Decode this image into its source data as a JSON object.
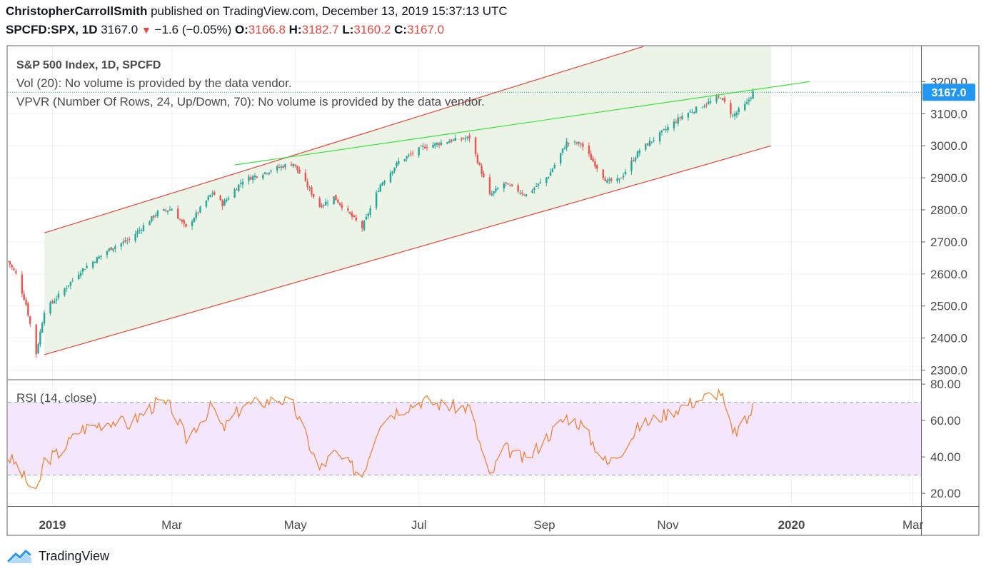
{
  "header": {
    "author": "ChristopherCarrollSmith",
    "published_text": "published on TradingView.com, December 13, 2019 15:37:13 UTC",
    "symbol": "SPCFD:SPX, 1D",
    "last": "3167.0",
    "change": "−1.6 (−0.05%)",
    "o_label": "O:",
    "o_value": "3166.8",
    "h_label": "H:",
    "h_value": "3182.7",
    "l_label": "L:",
    "l_value": "3160.2",
    "c_label": "C:",
    "c_value": "3167.0"
  },
  "legend": {
    "title": "S&P 500 Index, 1D, SPCFD",
    "vol": "Vol (20): No volume is provided by the data vendor.",
    "vpvr": "VPVR (Number Of Rows, 24, Up/Down, 70): No volume is provided by the data vendor.",
    "rsi": "RSI (14, close)"
  },
  "price_badge": "3167.0",
  "footer": {
    "brand": "TradingView"
  },
  "colors": {
    "up": "#26a69a",
    "down": "#ef5350",
    "channel": "#e8453c",
    "trend": "#3ce33c",
    "channel_fill": "#eaf3e6",
    "rsi_line": "#f07f2a",
    "rsi_band": "#f3e6fd",
    "badge": "#2196f3"
  },
  "chart_data": [
    {
      "type": "candlestick",
      "title": "S&P 500 Index, 1D, SPCFD",
      "x_ticks": [
        "2019",
        "Mar",
        "May",
        "Jul",
        "Sep",
        "Nov",
        "2020",
        "Mar"
      ],
      "y_ticks": [
        "2300.0",
        "2400.0",
        "2500.0",
        "2600.0",
        "2700.0",
        "2800.0",
        "2900.0",
        "3000.0",
        "3100.0",
        "3200.0"
      ],
      "ylim": [
        2270,
        3310
      ],
      "x_range": [
        "2018-12-10",
        "2020-03-05"
      ],
      "series": [
        {
          "name": "SPX",
          "points": [
            [
              "2018-12-10",
              2640
            ],
            [
              "2018-12-14",
              2600
            ],
            [
              "2018-12-19",
              2505
            ],
            [
              "2018-12-24",
              2351
            ],
            [
              "2018-12-28",
              2485
            ],
            [
              "2019-01-04",
              2532
            ],
            [
              "2019-01-15",
              2610
            ],
            [
              "2019-01-30",
              2681
            ],
            [
              "2019-02-08",
              2707
            ],
            [
              "2019-02-22",
              2792
            ],
            [
              "2019-03-01",
              2803
            ],
            [
              "2019-03-08",
              2743
            ],
            [
              "2019-03-21",
              2854
            ],
            [
              "2019-03-26",
              2818
            ],
            [
              "2019-04-05",
              2892
            ],
            [
              "2019-04-23",
              2933
            ],
            [
              "2019-04-30",
              2945
            ],
            [
              "2019-05-13",
              2811
            ],
            [
              "2019-05-20",
              2840
            ],
            [
              "2019-06-03",
              2744
            ],
            [
              "2019-06-12",
              2879
            ],
            [
              "2019-06-21",
              2950
            ],
            [
              "2019-07-03",
              2996
            ],
            [
              "2019-07-15",
              3014
            ],
            [
              "2019-07-26",
              3025
            ],
            [
              "2019-08-05",
              2844
            ],
            [
              "2019-08-12",
              2882
            ],
            [
              "2019-08-23",
              2847
            ],
            [
              "2019-09-03",
              2906
            ],
            [
              "2019-09-12",
              3010
            ],
            [
              "2019-09-19",
              3006
            ],
            [
              "2019-10-02",
              2887
            ],
            [
              "2019-10-08",
              2893
            ],
            [
              "2019-10-18",
              2986
            ],
            [
              "2019-10-30",
              3046
            ],
            [
              "2019-11-08",
              3093
            ],
            [
              "2019-11-27",
              3153
            ],
            [
              "2019-12-03",
              3093
            ],
            [
              "2019-12-10",
              3132
            ],
            [
              "2019-12-13",
              3167
            ]
          ]
        }
      ],
      "annotations": [
        {
          "name": "channel-upper",
          "type": "trendline",
          "points": [
            [
              "2018-12-28",
              2728
            ],
            [
              "2019-10-20",
              3310
            ]
          ]
        },
        {
          "name": "channel-lower",
          "type": "trendline",
          "points": [
            [
              "2018-12-28",
              2348
            ],
            [
              "2019-12-22",
              3000
            ]
          ]
        },
        {
          "name": "resistance",
          "type": "trendline",
          "points": [
            [
              "2019-04-01",
              2940
            ],
            [
              "2020-01-10",
              3200
            ]
          ]
        }
      ],
      "last_price": 3167.0
    },
    {
      "type": "line",
      "title": "RSI (14, close)",
      "y_ticks": [
        "20.00",
        "40.00",
        "60.00",
        "80.00"
      ],
      "ylim": [
        13,
        82
      ],
      "bands": [
        30,
        70
      ],
      "series": [
        {
          "name": "RSI (14, close)",
          "points": [
            [
              "2018-12-10",
              40
            ],
            [
              "2018-12-14",
              36
            ],
            [
              "2018-12-19",
              27
            ],
            [
              "2018-12-24",
              19
            ],
            [
              "2018-12-28",
              38
            ],
            [
              "2019-01-04",
              42
            ],
            [
              "2019-01-15",
              55
            ],
            [
              "2019-01-30",
              60
            ],
            [
              "2019-02-08",
              58
            ],
            [
              "2019-02-22",
              70
            ],
            [
              "2019-03-01",
              67
            ],
            [
              "2019-03-08",
              50
            ],
            [
              "2019-03-21",
              68
            ],
            [
              "2019-03-26",
              55
            ],
            [
              "2019-04-05",
              68
            ],
            [
              "2019-04-23",
              72
            ],
            [
              "2019-04-30",
              68
            ],
            [
              "2019-05-13",
              33
            ],
            [
              "2019-05-20",
              42
            ],
            [
              "2019-06-03",
              30
            ],
            [
              "2019-06-12",
              60
            ],
            [
              "2019-06-21",
              66
            ],
            [
              "2019-07-03",
              71
            ],
            [
              "2019-07-15",
              68
            ],
            [
              "2019-07-26",
              67
            ],
            [
              "2019-08-05",
              28
            ],
            [
              "2019-08-12",
              45
            ],
            [
              "2019-08-23",
              38
            ],
            [
              "2019-09-03",
              52
            ],
            [
              "2019-09-12",
              62
            ],
            [
              "2019-09-19",
              58
            ],
            [
              "2019-10-02",
              36
            ],
            [
              "2019-10-08",
              42
            ],
            [
              "2019-10-18",
              57
            ],
            [
              "2019-10-30",
              63
            ],
            [
              "2019-11-08",
              68
            ],
            [
              "2019-11-27",
              76
            ],
            [
              "2019-12-03",
              52
            ],
            [
              "2019-12-10",
              60
            ],
            [
              "2019-12-13",
              67
            ]
          ]
        }
      ]
    }
  ]
}
